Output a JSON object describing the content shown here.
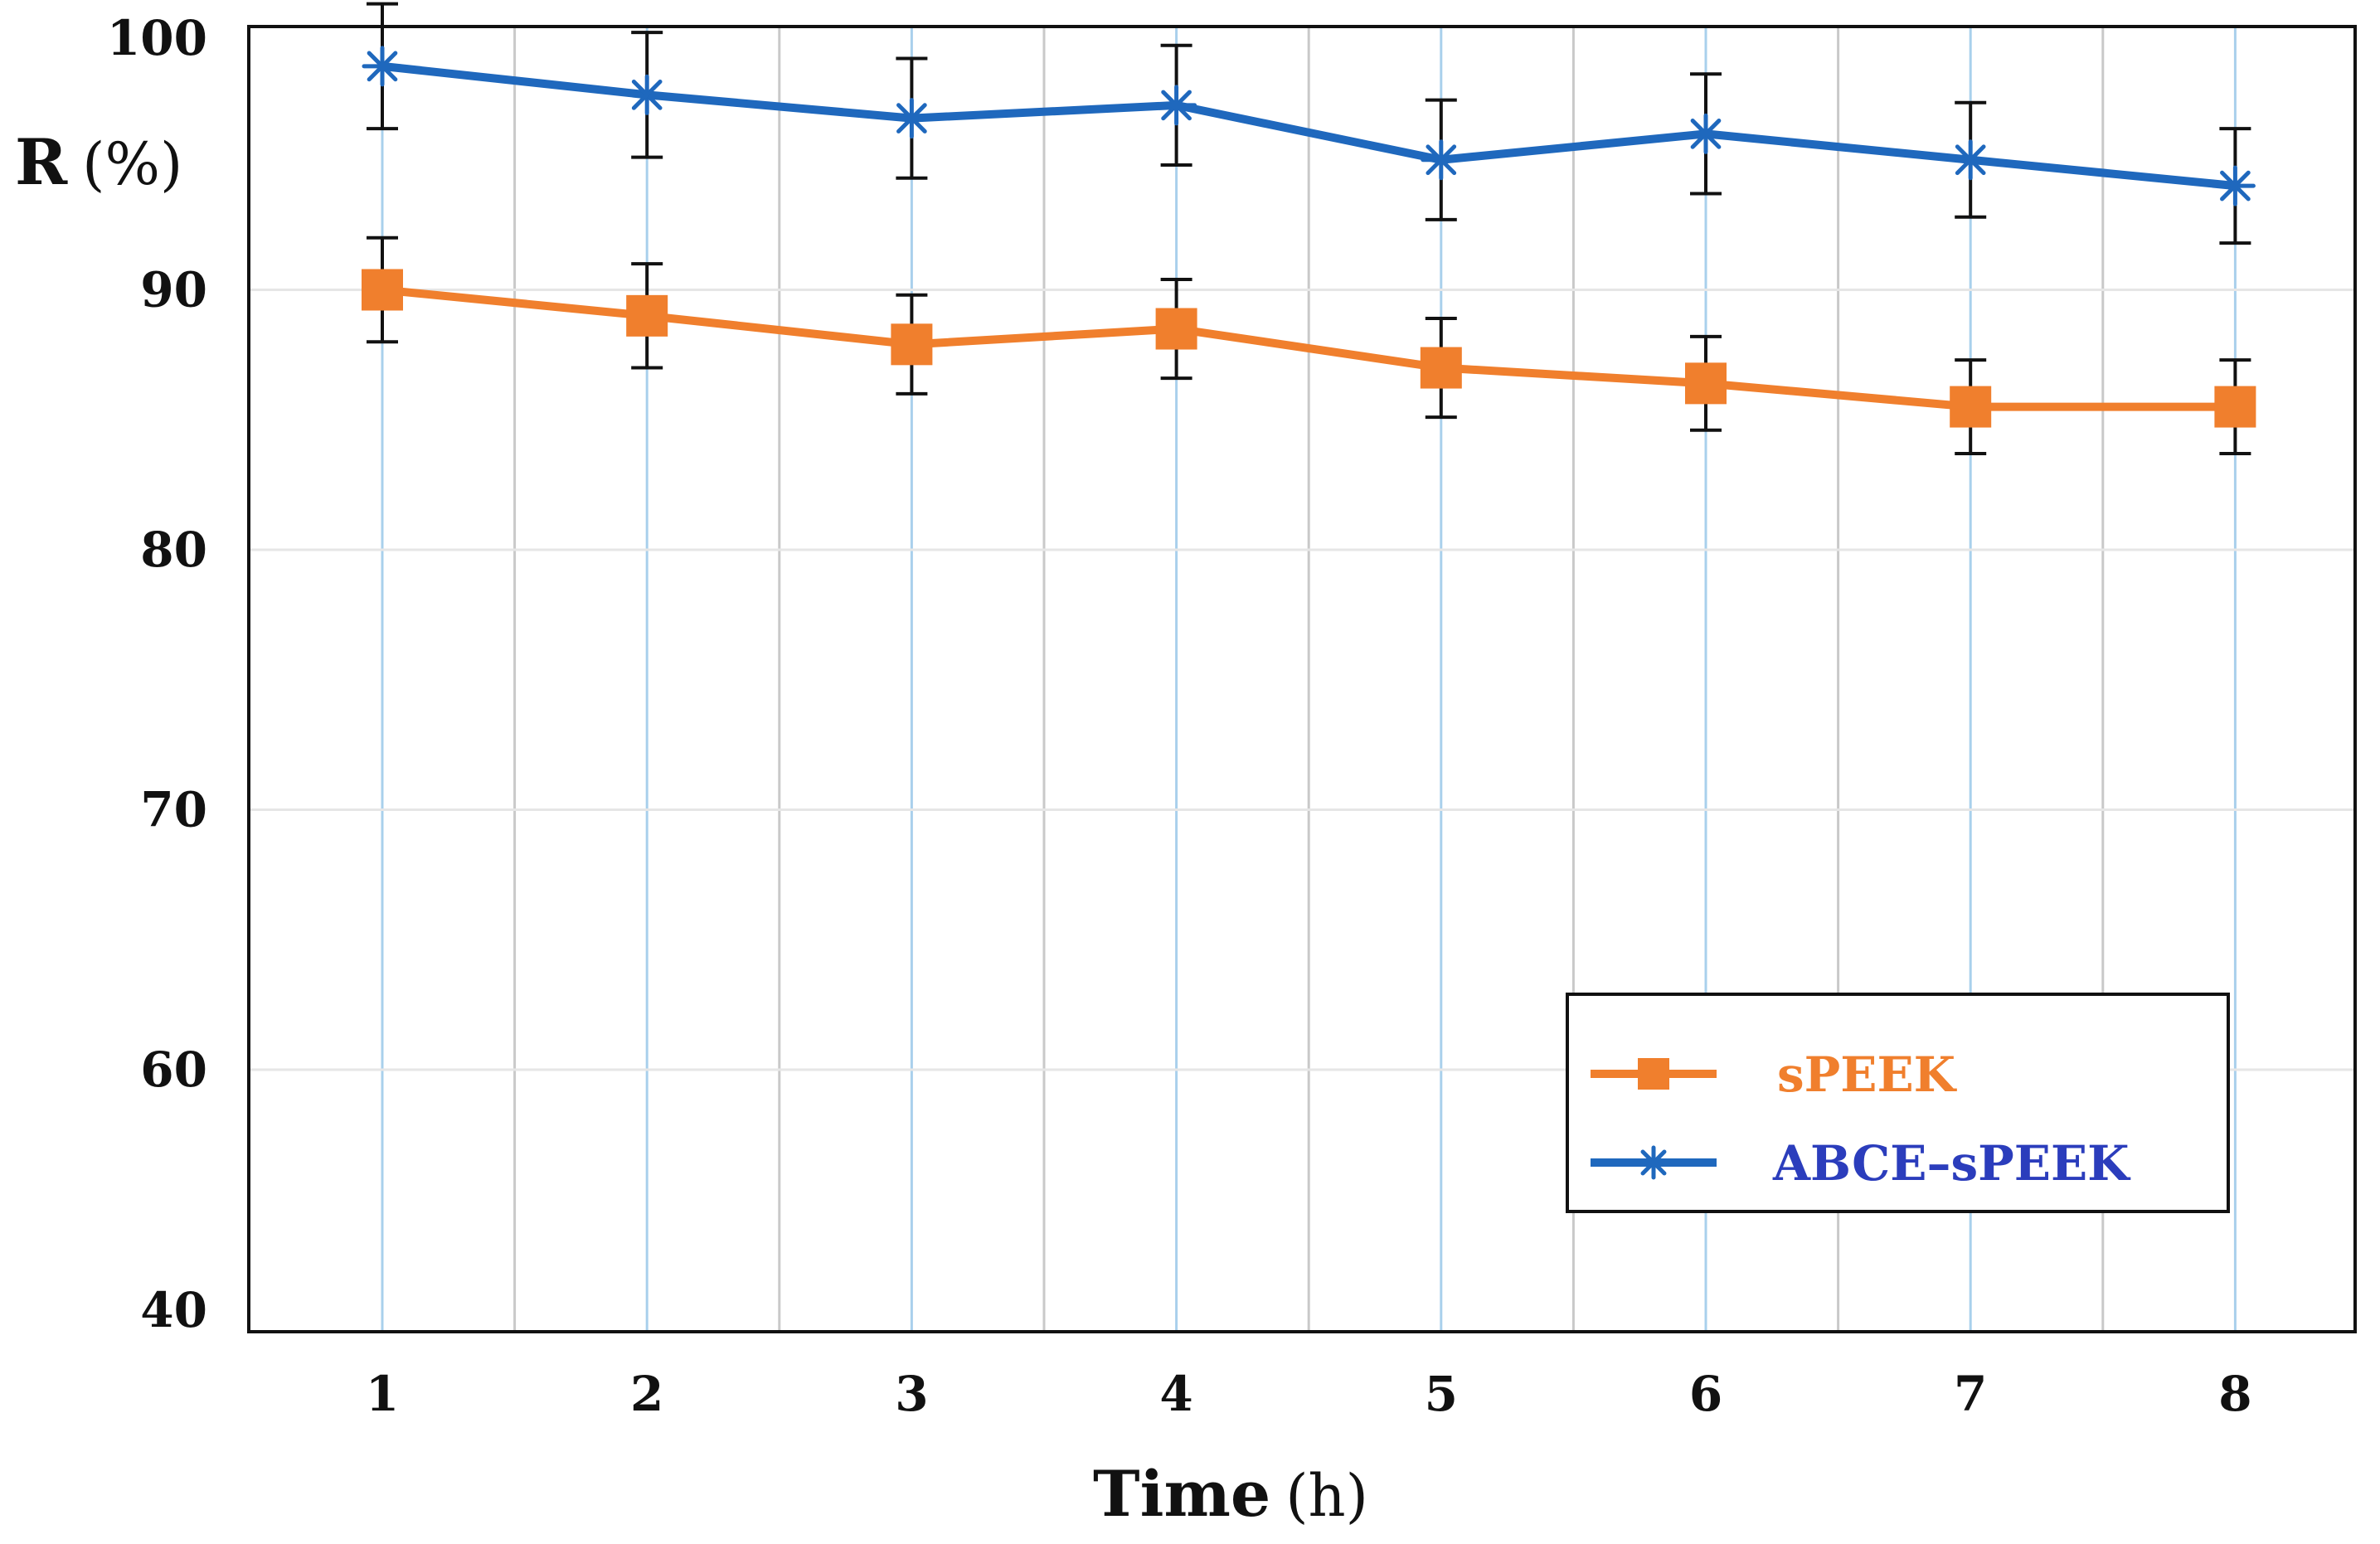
{
  "chart_data": {
    "type": "line",
    "x": [
      1,
      2,
      3,
      4,
      5,
      6,
      7,
      8
    ],
    "x_tick_labels": [
      "1",
      "2",
      "3",
      "4",
      "5",
      "6",
      "7",
      "8"
    ],
    "y_tick_labels": [
      "40",
      "60",
      "70",
      "80",
      "90",
      "100"
    ],
    "y_ticks": [
      40,
      60,
      70,
      80,
      90,
      100
    ],
    "axis_break": "40 sits one grid step below 60 (broken axis)",
    "ylim": [
      40,
      100
    ],
    "xlabel_main": "Time",
    "xlabel_unit": "(h)",
    "ylabel_main": "R",
    "ylabel_unit": "(%)",
    "grid": true,
    "legend_position": "bottom-right",
    "series": [
      {
        "name": "sPEEK",
        "color": "#f07f2d",
        "marker": "square",
        "values": [
          90.0,
          89.0,
          87.9,
          88.5,
          87.0,
          86.4,
          85.5,
          85.5
        ],
        "errors": [
          2.0,
          2.0,
          1.9,
          1.9,
          1.9,
          1.8,
          1.8,
          1.8
        ]
      },
      {
        "name": "ABCE–sPEEK",
        "color": "#1f68bd",
        "label_color": "#2b3dbc",
        "marker": "asterisk",
        "values": [
          98.6,
          97.5,
          96.6,
          97.1,
          95.0,
          96.0,
          95.0,
          94.0
        ],
        "errors": [
          2.4,
          2.4,
          2.3,
          2.3,
          2.3,
          2.3,
          2.2,
          2.2
        ]
      }
    ]
  }
}
